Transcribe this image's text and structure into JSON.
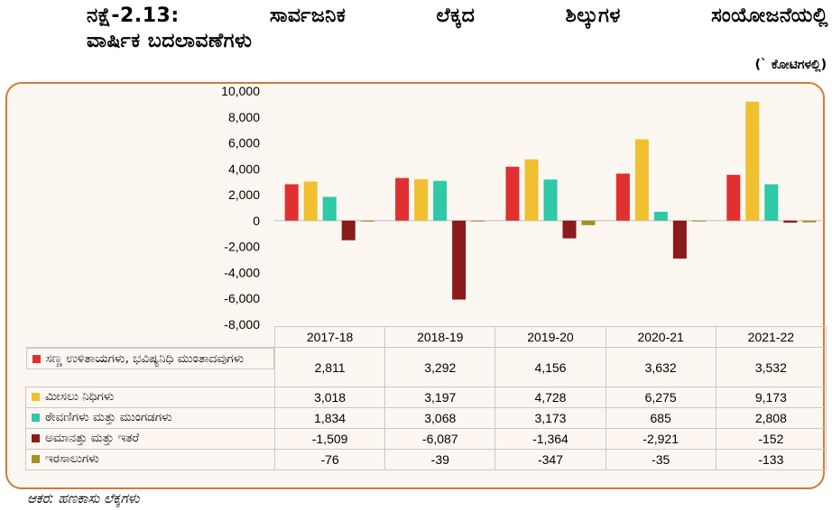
{
  "title": {
    "line1": "ನಕ್ಷೆ-2.13: ಸಾರ್ವಜನಿಕ ಲೆಕ್ಕದ ಶಿಲ್ಕುಗಳ ಸಂಯೋಜನೆಯಲ್ಲಿ",
    "line2": "ವಾರ್ಷಿಕ ಬದಲಾವಣೆಗಳು"
  },
  "unit": "(` ಕೋಟಿಗಳಲ್ಲಿ)",
  "source": "ಆಕರ: ಹಣಕಾಸು ಲೆಕ್ಕಗಳು",
  "chart_data": {
    "type": "bar",
    "categories": [
      "2017-18",
      "2018-19",
      "2019-20",
      "2020-21",
      "2021-22"
    ],
    "ylim": [
      -8000,
      10000
    ],
    "yticks": [
      10000,
      8000,
      6000,
      4000,
      2000,
      0,
      -2000,
      -4000,
      -6000,
      -8000
    ],
    "ytick_labels": [
      "10,000",
      "8,000",
      "6,000",
      "4,000",
      "2,000",
      "0",
      "-2,000",
      "-4,000",
      "-6,000",
      "-8,000"
    ],
    "series": [
      {
        "name": "ಸಣ್ಣ ಉಳಿತಾಯಗಳು, ಭವಿಷ್ಯನಿಧಿ ಮುಂತಾದವುಗಳು",
        "color": "#e03030",
        "values": [
          2811,
          3292,
          4156,
          3632,
          3532
        ],
        "labels": [
          "2,811",
          "3,292",
          "4,156",
          "3,632",
          "3,532"
        ]
      },
      {
        "name": "ಮೀಸಲು ನಿಧಿಗಳು",
        "color": "#f0c030",
        "values": [
          3018,
          3197,
          4728,
          6275,
          9173
        ],
        "labels": [
          "3,018",
          "3,197",
          "4,728",
          "6,275",
          "9,173"
        ]
      },
      {
        "name": "ಠೇವಣಿಗಳು ಮತ್ತು ಮುಂಗಡಗಳು",
        "color": "#2ec9a6",
        "values": [
          1834,
          3068,
          3173,
          685,
          2808
        ],
        "labels": [
          "1,834",
          "3,068",
          "3,173",
          "685",
          "2,808"
        ]
      },
      {
        "name": "ಅಮಾನತ್ತು ಮತ್ತು ಇತರೆ",
        "color": "#8b1a1a",
        "values": [
          -1509,
          -6087,
          -1364,
          -2921,
          -152
        ],
        "labels": [
          "-1,509",
          "-6,087",
          "-1,364",
          "-2,921",
          "-152"
        ]
      },
      {
        "name": "ಇರಸಾಲುಗಳು",
        "color": "#a89020",
        "values": [
          -76,
          -39,
          -347,
          -35,
          -133
        ],
        "labels": [
          "-76",
          "-39",
          "-347",
          "-35",
          "-133"
        ]
      }
    ],
    "legend": "table-below"
  }
}
